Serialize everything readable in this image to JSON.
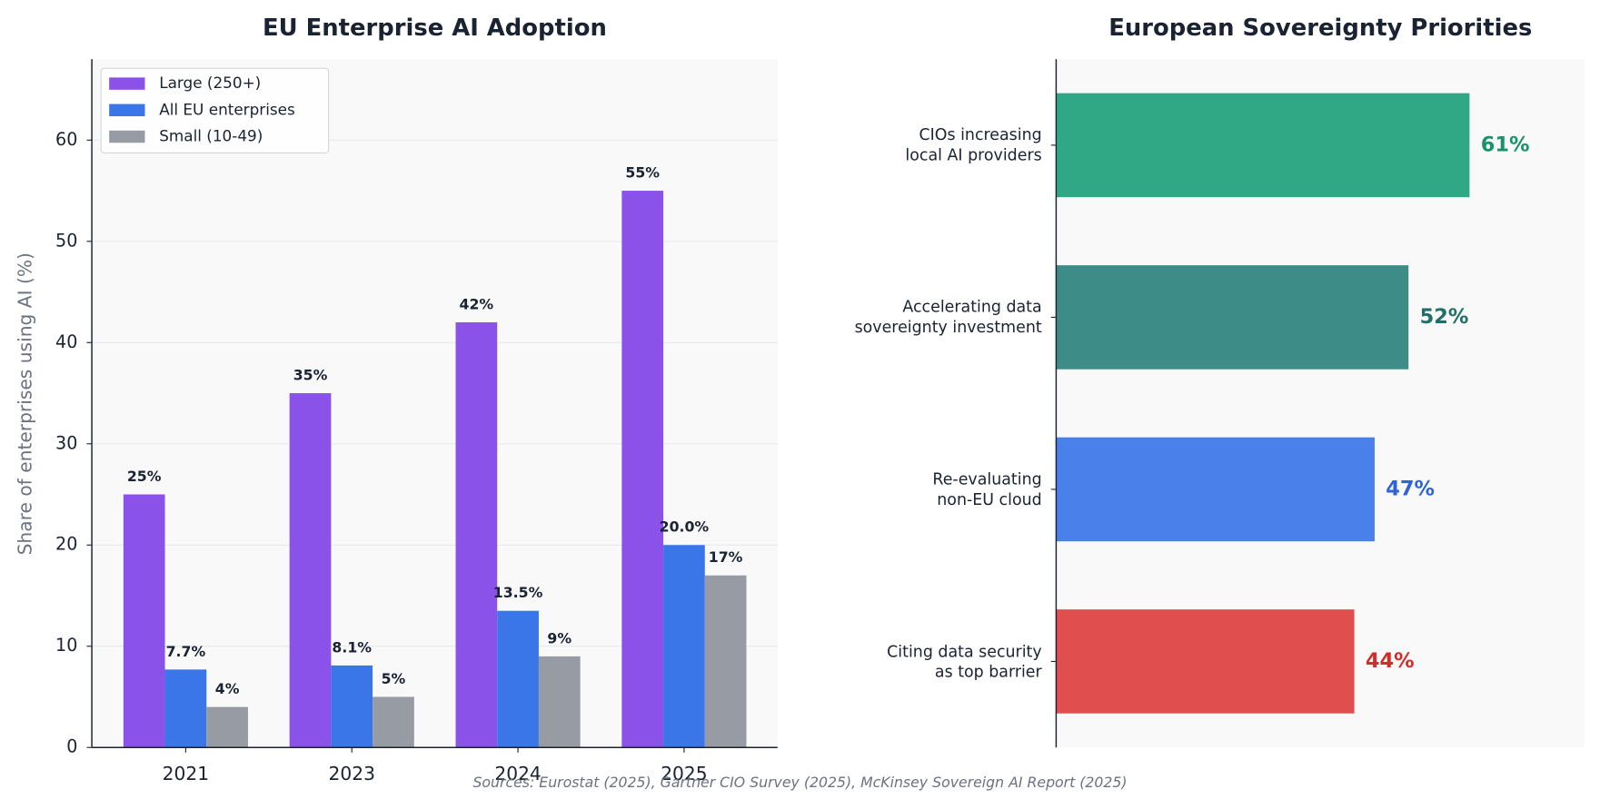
{
  "chart_data": [
    {
      "type": "bar",
      "title": "EU Enterprise AI Adoption",
      "ylabel": "Share of enterprises using AI (%)",
      "categories": [
        "2021",
        "2023",
        "2024",
        "2025"
      ],
      "series": [
        {
          "name": "Large (250+)",
          "color": "#8b52ea",
          "values": [
            25,
            35,
            42,
            55
          ],
          "value_labels": [
            "25%",
            "35%",
            "42%",
            "55%"
          ]
        },
        {
          "name": "All EU enterprises",
          "color": "#3b76e8",
          "values": [
            7.7,
            8.1,
            13.5,
            20
          ],
          "value_labels": [
            "7.7%",
            "8.1%",
            "13.5%",
            "20.0%"
          ]
        },
        {
          "name": "Small (10-49)",
          "color": "#979ba4",
          "values": [
            4,
            5,
            9,
            17
          ],
          "value_labels": [
            "4%",
            "5%",
            "9%",
            "17%"
          ]
        }
      ],
      "ylim": [
        0,
        68
      ],
      "yticks": [
        0,
        10,
        20,
        30,
        40,
        50,
        60
      ],
      "grid": true,
      "legend": "upper left"
    },
    {
      "type": "hbar",
      "title": "European Sovereignty Priorities",
      "categories": [
        "CIOs increasing\nlocal AI providers",
        "Accelerating data\nsovereignty investment",
        "Re-evaluating\nnon-EU cloud",
        "Citing data security\nas top barrier"
      ],
      "values": [
        61,
        52,
        47,
        44
      ],
      "value_labels": [
        "61%",
        "52%",
        "47%",
        "44%"
      ],
      "colors": [
        "#31a885",
        "#3d8c87",
        "#4a80ea",
        "#e04e4e"
      ],
      "value_label_colors": [
        "#17936a",
        "#1e7068",
        "#2e62d8",
        "#d42b2b"
      ],
      "xlim": [
        0,
        78
      ]
    }
  ],
  "source": "Sources: Eurostat (2025), Gartner CIO Survey (2025), McKinsey Sovereign AI Report (2025)"
}
